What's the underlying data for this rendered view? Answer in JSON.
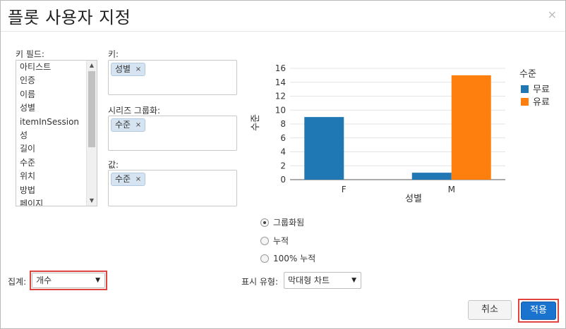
{
  "dialog": {
    "title": "플롯 사용자 지정",
    "close_glyph": "×"
  },
  "key_fields": {
    "label": "키 필드:",
    "items": [
      "아티스트",
      "인증",
      "이름",
      "성별",
      "itemInSession",
      "성",
      "길이",
      "수준",
      "위치",
      "방법",
      "페이지"
    ]
  },
  "keys": {
    "label": "키:",
    "chips": [
      "성별"
    ]
  },
  "series_group": {
    "label": "시리즈 그룹화:",
    "chips": [
      "수준"
    ]
  },
  "values": {
    "label": "값:",
    "chips": [
      "수준"
    ]
  },
  "chip_remove_glyph": "×",
  "chart_data": {
    "type": "bar",
    "categories": [
      "F",
      "M"
    ],
    "series": [
      {
        "name": "무료",
        "values": [
          9,
          1
        ],
        "color": "#1f77b4"
      },
      {
        "name": "유료",
        "values": [
          0,
          15
        ],
        "color": "#ff7f0e"
      }
    ],
    "xlabel": "성별",
    "ylabel": "수준",
    "ylim": [
      0,
      16
    ],
    "yticks": [
      "0",
      "2",
      "4",
      "6",
      "8",
      "10",
      "12",
      "14",
      "16"
    ],
    "legend_title": "수준",
    "legend_placement": "right"
  },
  "display_modes": [
    {
      "label": "그룹화됨",
      "checked": true
    },
    {
      "label": "누적",
      "checked": false
    },
    {
      "label": "100% 누적",
      "checked": false
    }
  ],
  "aggregation": {
    "label": "집계:",
    "value": "개수"
  },
  "display_type": {
    "label": "표시 유형:",
    "value": "막대형 차트"
  },
  "select_arrow": "▼",
  "footer": {
    "cancel_label": "취소",
    "apply_label": "적용"
  },
  "colors": {
    "highlight": "#e0443e",
    "primary": "#1a73cf"
  }
}
